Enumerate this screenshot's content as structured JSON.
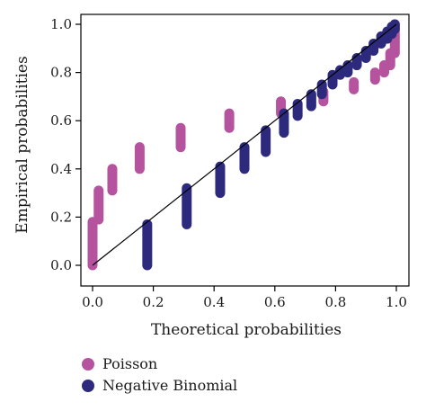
{
  "chart_data": {
    "type": "scatter",
    "title": "",
    "xlabel": "Theoretical probabilities",
    "ylabel": "Empirical probabilities",
    "xlim": [
      0,
      1
    ],
    "ylim": [
      0,
      1
    ],
    "x_ticks": [
      "0.0",
      "0.2",
      "0.4",
      "0.6",
      "0.8",
      "1.0"
    ],
    "y_ticks": [
      "0.0",
      "0.2",
      "0.4",
      "0.6",
      "0.8",
      "1.0"
    ],
    "grid": false,
    "reference_line": "y = x",
    "legend_placement": "bottom-left",
    "series": [
      {
        "name": "Poisson",
        "color": "#b5539e",
        "segments": [
          {
            "x": 0.0,
            "y_from": 0.0,
            "y_to": 0.18
          },
          {
            "x": 0.02,
            "y_from": 0.19,
            "y_to": 0.31
          },
          {
            "x": 0.065,
            "y_from": 0.31,
            "y_to": 0.4
          },
          {
            "x": 0.155,
            "y_from": 0.4,
            "y_to": 0.49
          },
          {
            "x": 0.29,
            "y_from": 0.49,
            "y_to": 0.57
          },
          {
            "x": 0.45,
            "y_from": 0.57,
            "y_to": 0.63
          },
          {
            "x": 0.62,
            "y_from": 0.63,
            "y_to": 0.68
          },
          {
            "x": 0.76,
            "y_from": 0.68,
            "y_to": 0.72
          },
          {
            "x": 0.86,
            "y_from": 0.73,
            "y_to": 0.76
          },
          {
            "x": 0.93,
            "y_from": 0.77,
            "y_to": 0.8
          },
          {
            "x": 0.96,
            "y_from": 0.8,
            "y_to": 0.83
          },
          {
            "x": 0.98,
            "y_from": 0.83,
            "y_to": 0.88
          },
          {
            "x": 0.995,
            "y_from": 0.88,
            "y_to": 1.0
          }
        ]
      },
      {
        "name": "Negative Binomial",
        "color": "#2d2a7e",
        "segments": [
          {
            "x": 0.18,
            "y_from": 0.0,
            "y_to": 0.17
          },
          {
            "x": 0.31,
            "y_from": 0.17,
            "y_to": 0.32
          },
          {
            "x": 0.42,
            "y_from": 0.3,
            "y_to": 0.41
          },
          {
            "x": 0.5,
            "y_from": 0.4,
            "y_to": 0.49
          },
          {
            "x": 0.57,
            "y_from": 0.47,
            "y_to": 0.56
          },
          {
            "x": 0.63,
            "y_from": 0.55,
            "y_to": 0.63
          },
          {
            "x": 0.675,
            "y_from": 0.62,
            "y_to": 0.67
          },
          {
            "x": 0.72,
            "y_from": 0.66,
            "y_to": 0.71
          },
          {
            "x": 0.755,
            "y_from": 0.71,
            "y_to": 0.75
          },
          {
            "x": 0.79,
            "y_from": 0.75,
            "y_to": 0.79
          },
          {
            "x": 0.815,
            "y_from": 0.79,
            "y_to": 0.81
          },
          {
            "x": 0.84,
            "y_from": 0.8,
            "y_to": 0.83
          },
          {
            "x": 0.87,
            "y_from": 0.83,
            "y_to": 0.86
          },
          {
            "x": 0.9,
            "y_from": 0.86,
            "y_to": 0.89
          },
          {
            "x": 0.925,
            "y_from": 0.89,
            "y_to": 0.92
          },
          {
            "x": 0.95,
            "y_from": 0.92,
            "y_to": 0.95
          },
          {
            "x": 0.97,
            "y_from": 0.94,
            "y_to": 0.97
          },
          {
            "x": 0.985,
            "y_from": 0.96,
            "y_to": 0.99
          },
          {
            "x": 0.995,
            "y_from": 0.98,
            "y_to": 1.0
          }
        ]
      }
    ]
  }
}
